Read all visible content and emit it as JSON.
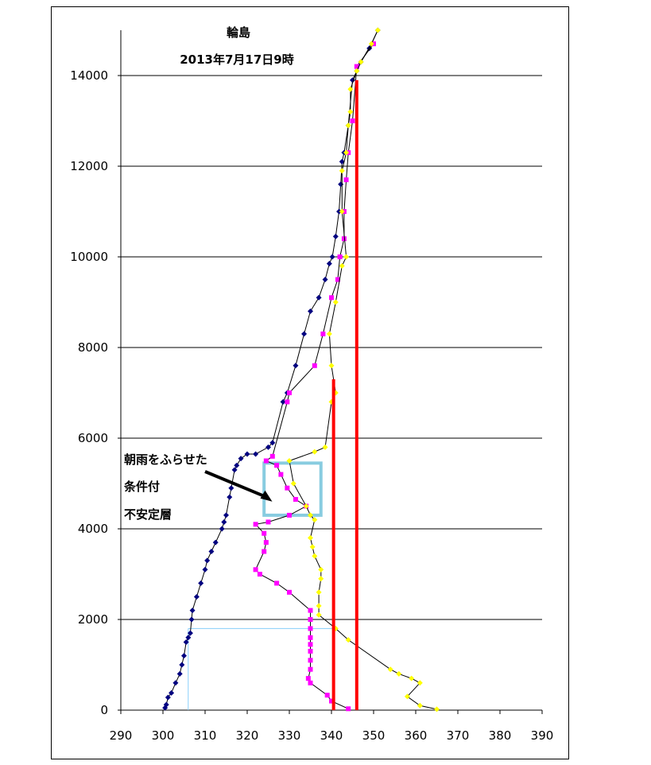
{
  "chart_data": {
    "type": "line",
    "title": "輪島",
    "subtitle": "2013年7月17日9時",
    "xlim": [
      290,
      390
    ],
    "ylim": [
      0,
      15000
    ],
    "x_ticks": [
      "290",
      "300",
      "310",
      "320",
      "330",
      "340",
      "350",
      "360",
      "370",
      "380",
      "390"
    ],
    "y_ticks": [
      "0",
      "2000",
      "4000",
      "6000",
      "8000",
      "10000",
      "12000",
      "14000"
    ],
    "grid": "horizontal",
    "series": [
      {
        "name": "",
        "color": "#000080",
        "marker": "diamond",
        "points": [
          [
            300.5,
            50
          ],
          [
            300.8,
            120
          ],
          [
            301.2,
            280
          ],
          [
            302,
            380
          ],
          [
            303,
            600
          ],
          [
            304,
            800
          ],
          [
            304.5,
            1000
          ],
          [
            305,
            1200
          ],
          [
            305.5,
            1500
          ],
          [
            306,
            1600
          ],
          [
            306.5,
            1700
          ],
          [
            306.8,
            2000
          ],
          [
            307,
            2200
          ],
          [
            308,
            2500
          ],
          [
            309,
            2800
          ],
          [
            310,
            3100
          ],
          [
            310.5,
            3300
          ],
          [
            311.5,
            3500
          ],
          [
            312.5,
            3700
          ],
          [
            314,
            4000
          ],
          [
            314.5,
            4150
          ],
          [
            315,
            4300
          ],
          [
            315.8,
            4700
          ],
          [
            316.2,
            4900
          ],
          [
            317,
            5300
          ],
          [
            317.5,
            5400
          ],
          [
            318.5,
            5550
          ],
          [
            320,
            5650
          ],
          [
            322,
            5650
          ],
          [
            325,
            5800
          ],
          [
            326,
            5900
          ],
          [
            328.5,
            6800
          ],
          [
            329.5,
            7000
          ],
          [
            331.5,
            7600
          ],
          [
            333.5,
            8300
          ],
          [
            335,
            8800
          ],
          [
            337,
            9100
          ],
          [
            338.5,
            9500
          ],
          [
            339.5,
            9850
          ],
          [
            340.2,
            10000
          ],
          [
            341,
            10450
          ],
          [
            341.8,
            11000
          ],
          [
            342.2,
            11600
          ],
          [
            342.5,
            12100
          ],
          [
            343,
            12300
          ],
          [
            344,
            12900
          ],
          [
            345,
            13900
          ],
          [
            346,
            14100
          ],
          [
            347,
            14300
          ],
          [
            349,
            14600
          ],
          [
            351,
            15000
          ]
        ]
      },
      {
        "name": "",
        "color": "#ff00ff",
        "marker": "square",
        "points": [
          [
            344,
            30
          ],
          [
            340,
            200
          ],
          [
            339,
            330
          ],
          [
            335,
            600
          ],
          [
            334.5,
            700
          ],
          [
            335,
            900
          ],
          [
            335,
            1100
          ],
          [
            335,
            1300
          ],
          [
            335,
            1450
          ],
          [
            335,
            1600
          ],
          [
            335,
            1800
          ],
          [
            335,
            2000
          ],
          [
            335,
            2200
          ],
          [
            330,
            2600
          ],
          [
            327,
            2800
          ],
          [
            323,
            3000
          ],
          [
            322,
            3100
          ],
          [
            324,
            3500
          ],
          [
            324.5,
            3700
          ],
          [
            324,
            3900
          ],
          [
            322,
            4100
          ],
          [
            325,
            4150
          ],
          [
            330,
            4300
          ],
          [
            334,
            4500
          ],
          [
            331.5,
            4650
          ],
          [
            329.5,
            4900
          ],
          [
            328,
            5200
          ],
          [
            327,
            5400
          ],
          [
            324.5,
            5500
          ],
          [
            326,
            5600
          ],
          [
            329.5,
            6800
          ],
          [
            330,
            7000
          ],
          [
            336,
            7600
          ],
          [
            338,
            8300
          ],
          [
            340,
            9100
          ],
          [
            341.5,
            9500
          ],
          [
            342,
            10000
          ],
          [
            343,
            10400
          ],
          [
            343,
            11000
          ],
          [
            343.5,
            11700
          ],
          [
            344,
            12300
          ],
          [
            345,
            13000
          ],
          [
            346,
            14200
          ],
          [
            350,
            14700
          ]
        ]
      },
      {
        "name": "",
        "color": "#ffff00",
        "marker": "diamond",
        "points": [
          [
            365,
            20
          ],
          [
            361,
            100
          ],
          [
            358,
            300
          ],
          [
            361,
            600
          ],
          [
            359,
            700
          ],
          [
            356,
            800
          ],
          [
            354,
            900
          ],
          [
            344,
            1550
          ],
          [
            341,
            1800
          ],
          [
            337,
            2100
          ],
          [
            337,
            2300
          ],
          [
            337,
            2600
          ],
          [
            337.5,
            2900
          ],
          [
            337.5,
            3100
          ],
          [
            336,
            3400
          ],
          [
            335.5,
            3600
          ],
          [
            335,
            3800
          ],
          [
            336,
            4200
          ],
          [
            335,
            4300
          ],
          [
            334,
            4500
          ],
          [
            331,
            5000
          ],
          [
            330,
            5500
          ],
          [
            336,
            5700
          ],
          [
            338.5,
            5800
          ],
          [
            340,
            6800
          ],
          [
            341,
            7000
          ],
          [
            340,
            7600
          ],
          [
            339.5,
            8300
          ],
          [
            341,
            9000
          ],
          [
            342.5,
            9800
          ],
          [
            343.5,
            10000
          ],
          [
            342.5,
            11000
          ],
          [
            342.5,
            11900
          ],
          [
            343.5,
            12300
          ],
          [
            344,
            12900
          ],
          [
            344.5,
            13200
          ],
          [
            344.5,
            13700
          ],
          [
            346,
            14100
          ],
          [
            347,
            14300
          ],
          [
            349.5,
            14700
          ],
          [
            351,
            15000
          ]
        ]
      }
    ],
    "reference_lines": [
      {
        "color": "#ff0000",
        "x": 340.5,
        "y_range": [
          0,
          7300
        ]
      },
      {
        "color": "#ff0000",
        "x": 346,
        "y_range": [
          0,
          13900
        ]
      }
    ],
    "helper_lines": {
      "color": "#87cefa",
      "vertical": {
        "x": 306,
        "y_range": [
          0,
          1800
        ]
      },
      "horizontal": {
        "y": 1800,
        "x_range": [
          306,
          341
        ]
      }
    },
    "highlight_box": {
      "color": "#88cce0",
      "x_range": [
        324,
        337.5
      ],
      "y_range": [
        4300,
        5450
      ]
    },
    "annotation": {
      "lines": [
        "朝雨をふらせた",
        "条件付",
        "不安定層"
      ],
      "arrow_color": "#000000",
      "arrow_target": [
        325,
        4600
      ]
    }
  }
}
